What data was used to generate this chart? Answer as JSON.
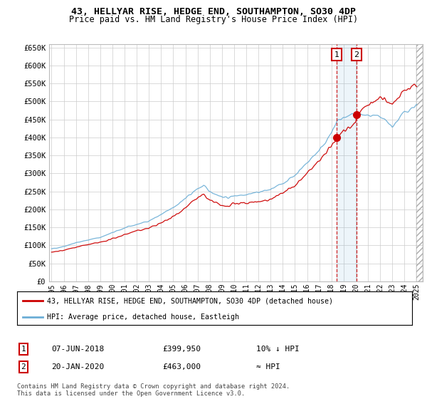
{
  "title": "43, HELLYAR RISE, HEDGE END, SOUTHAMPTON, SO30 4DP",
  "subtitle": "Price paid vs. HM Land Registry's House Price Index (HPI)",
  "legend_line1": "43, HELLYAR RISE, HEDGE END, SOUTHAMPTON, SO30 4DP (detached house)",
  "legend_line2": "HPI: Average price, detached house, Eastleigh",
  "sale1_date": "07-JUN-2018",
  "sale1_price": "£399,950",
  "sale1_hpi": "10% ↓ HPI",
  "sale2_date": "20-JAN-2020",
  "sale2_price": "£463,000",
  "sale2_hpi": "≈ HPI",
  "footer": "Contains HM Land Registry data © Crown copyright and database right 2024.\nThis data is licensed under the Open Government Licence v3.0.",
  "hpi_color": "#6baed6",
  "price_color": "#cc0000",
  "marker1_x": 2018.44,
  "marker1_y": 399950,
  "marker2_x": 2020.05,
  "marker2_y": 463000,
  "ylim": [
    0,
    660000
  ],
  "xlim": [
    1994.8,
    2025.5
  ],
  "yticks": [
    0,
    50000,
    100000,
    150000,
    200000,
    250000,
    300000,
    350000,
    400000,
    450000,
    500000,
    550000,
    600000,
    650000
  ],
  "xticks": [
    1995,
    1996,
    1997,
    1998,
    1999,
    2000,
    2001,
    2002,
    2003,
    2004,
    2005,
    2006,
    2007,
    2008,
    2009,
    2010,
    2011,
    2012,
    2013,
    2014,
    2015,
    2016,
    2017,
    2018,
    2019,
    2020,
    2021,
    2022,
    2023,
    2024,
    2025
  ],
  "hpi_anchors_x": [
    1995,
    1996,
    1997,
    1998,
    1999,
    2000,
    2001,
    2002,
    2003,
    2004,
    2005,
    2006,
    2007,
    2007.5,
    2008,
    2009,
    2009.5,
    2010,
    2011,
    2012,
    2013,
    2014,
    2015,
    2016,
    2017,
    2018,
    2018.44,
    2019,
    2020,
    2020.05,
    2021,
    2022,
    2022.5,
    2023,
    2023.5,
    2024,
    2025
  ],
  "hpi_anchors_y": [
    90000,
    97000,
    107000,
    115000,
    122000,
    135000,
    148000,
    158000,
    168000,
    185000,
    205000,
    230000,
    258000,
    265000,
    250000,
    235000,
    232000,
    238000,
    242000,
    248000,
    255000,
    272000,
    295000,
    330000,
    365000,
    410000,
    445000,
    455000,
    465000,
    465000,
    460000,
    455000,
    445000,
    430000,
    450000,
    470000,
    490000
  ],
  "price_anchors_x": [
    1995,
    1996,
    1997,
    1998,
    1999,
    2000,
    2001,
    2002,
    2003,
    2004,
    2005,
    2006,
    2007,
    2007.5,
    2008,
    2009,
    2009.5,
    2010,
    2011,
    2012,
    2013,
    2014,
    2015,
    2016,
    2017,
    2018,
    2018.44,
    2019,
    2020,
    2020.05,
    2021,
    2022,
    2022.5,
    2023,
    2023.5,
    2024,
    2025
  ],
  "price_anchors_y": [
    80000,
    86000,
    95000,
    102000,
    108000,
    118000,
    130000,
    140000,
    148000,
    162000,
    180000,
    205000,
    232000,
    240000,
    225000,
    210000,
    208000,
    215000,
    218000,
    222000,
    228000,
    245000,
    265000,
    300000,
    335000,
    375000,
    399950,
    420000,
    440000,
    463000,
    490000,
    510000,
    505000,
    490000,
    510000,
    530000,
    545000
  ]
}
